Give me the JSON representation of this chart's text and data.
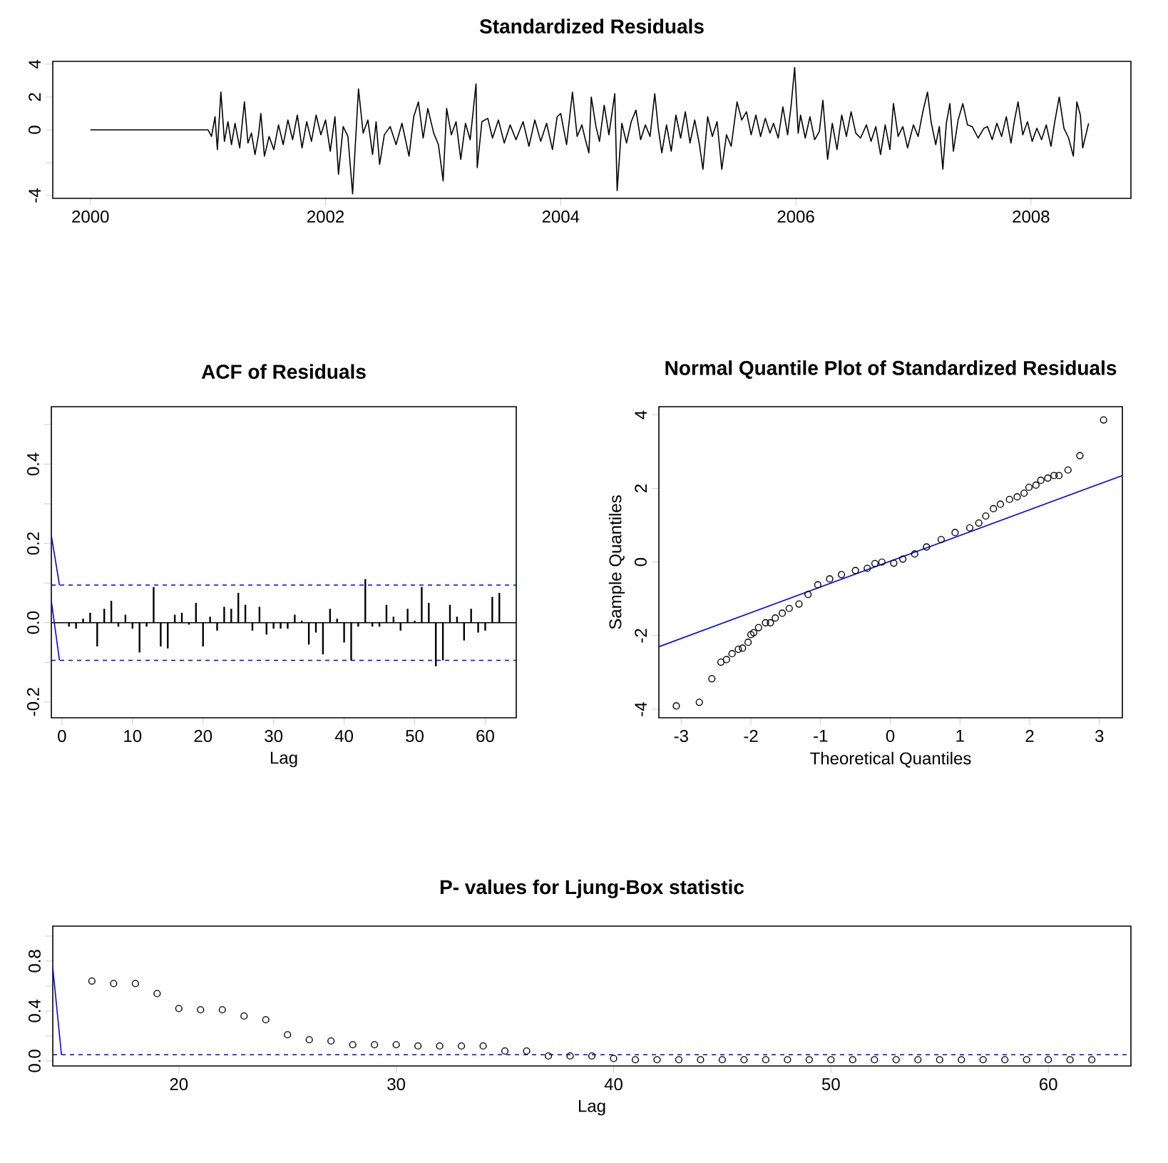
{
  "chart_data": [
    {
      "type": "line",
      "title": "Standardized Residuals",
      "color": "#000000",
      "x": [
        2000,
        2001,
        2001.03,
        2001.06,
        2001.08,
        2001.11,
        2001.14,
        2001.17,
        2001.2,
        2001.23,
        2001.27,
        2001.31,
        2001.34,
        2001.37,
        2001.4,
        2001.43,
        2001.45,
        2001.48,
        2001.52,
        2001.56,
        2001.6,
        2001.64,
        2001.68,
        2001.72,
        2001.76,
        2001.8,
        2001.84,
        2001.88,
        2001.92,
        2001.96,
        2002.0,
        2002.04,
        2002.08,
        2002.11,
        2002.15,
        2002.19,
        2002.23,
        2002.28,
        2002.32,
        2002.36,
        2002.4,
        2002.43,
        2002.46,
        2002.5,
        2002.55,
        2002.6,
        2002.65,
        2002.71,
        2002.75,
        2002.79,
        2002.83,
        2002.87,
        2002.92,
        2002.96,
        2003.0,
        2003.03,
        2003.07,
        2003.11,
        2003.15,
        2003.19,
        2003.23,
        2003.28,
        2003.29,
        2003.33,
        2003.38,
        2003.42,
        2003.47,
        2003.52,
        2003.57,
        2003.62,
        2003.68,
        2003.73,
        2003.78,
        2003.83,
        2003.88,
        2003.93,
        2003.97,
        2004.0,
        2004.05,
        2004.1,
        2004.14,
        2004.18,
        2004.21,
        2004.24,
        2004.26,
        2004.3,
        2004.33,
        2004.37,
        2004.41,
        2004.46,
        2004.48,
        2004.52,
        2004.56,
        2004.6,
        2004.64,
        2004.68,
        2004.72,
        2004.76,
        2004.8,
        2004.83,
        2004.86,
        2004.9,
        2004.94,
        2004.98,
        2005.02,
        2005.06,
        2005.1,
        2005.14,
        2005.18,
        2005.21,
        2005.25,
        2005.29,
        2005.33,
        2005.37,
        2005.41,
        2005.45,
        2005.5,
        2005.54,
        2005.58,
        2005.62,
        2005.66,
        2005.7,
        2005.74,
        2005.78,
        2005.81,
        2005.85,
        2005.89,
        2005.93,
        2005.96,
        2005.99,
        2006.02,
        2006.04,
        2006.08,
        2006.12,
        2006.16,
        2006.2,
        2006.23,
        2006.27,
        2006.31,
        2006.35,
        2006.39,
        2006.43,
        2006.47,
        2006.51,
        2006.55,
        2006.6,
        2006.64,
        2006.68,
        2006.72,
        2006.76,
        2006.8,
        2006.83,
        2006.87,
        2006.91,
        2006.95,
        2007.0,
        2007.04,
        2007.08,
        2007.12,
        2007.15,
        2007.19,
        2007.22,
        2007.25,
        2007.28,
        2007.31,
        2007.34,
        2007.38,
        2007.42,
        2007.46,
        2007.5,
        2007.55,
        2007.6,
        2007.63,
        2007.67,
        2007.71,
        2007.75,
        2007.79,
        2007.83,
        2007.86,
        2007.89,
        2007.93,
        2007.97,
        2008.01,
        2008.05,
        2008.09,
        2008.13,
        2008.17,
        2008.2,
        2008.24,
        2008.28,
        2008.32,
        2008.36,
        2008.39,
        2008.42,
        2008.44,
        2008.49
      ],
      "values": [
        0,
        0,
        -0.4,
        0.8,
        -1.2,
        2.3,
        -0.7,
        0.5,
        -0.9,
        0.4,
        -1.1,
        1.7,
        -0.8,
        -0.2,
        -1.5,
        -0.3,
        1.0,
        -1.6,
        -0.4,
        -1.2,
        0.3,
        -0.9,
        0.6,
        -0.6,
        0.9,
        -1.1,
        0.5,
        -0.7,
        0.9,
        -0.3,
        0.6,
        -1.3,
        0.8,
        -2.7,
        0.2,
        -0.4,
        -3.9,
        2.5,
        -0.2,
        0.6,
        -1.5,
        0.5,
        -2.1,
        -0.3,
        0.2,
        -0.9,
        0.4,
        -1.6,
        0.8,
        1.7,
        -0.5,
        1.3,
        -0.2,
        -0.9,
        -3.1,
        1.3,
        -0.3,
        0.5,
        -1.8,
        0.4,
        -0.6,
        2.8,
        -2.3,
        0.5,
        0.7,
        -0.5,
        0.6,
        -0.8,
        0.3,
        -0.6,
        0.5,
        -1.0,
        0.6,
        -0.7,
        0.4,
        -1.2,
        0.8,
        1.0,
        -0.9,
        2.3,
        -0.4,
        0.3,
        -0.6,
        -1.4,
        2.0,
        0.2,
        -0.7,
        1.5,
        -0.3,
        2.2,
        -3.7,
        0.4,
        -0.8,
        0.5,
        1.2,
        -0.6,
        0.3,
        -0.4,
        2.2,
        0.1,
        -1.4,
        0.3,
        -1.3,
        0.9,
        -0.5,
        1.1,
        -0.8,
        0.6,
        -0.9,
        -2.4,
        0.8,
        -0.4,
        0.5,
        -2.4,
        -0.3,
        -1.0,
        1.7,
        0.6,
        1.1,
        -0.3,
        0.9,
        -0.4,
        0.7,
        -0.2,
        0.4,
        -0.5,
        1.4,
        -0.3,
        1.5,
        3.8,
        -0.2,
        0.9,
        -0.5,
        0.8,
        -0.6,
        -0.1,
        1.8,
        -1.8,
        0.4,
        -1.2,
        0.9,
        -0.4,
        1.1,
        -0.2,
        -0.5,
        0.3,
        -0.7,
        0.2,
        -1.5,
        0.3,
        -1.2,
        1.6,
        -0.4,
        0.2,
        -1.1,
        0.3,
        -0.4,
        1.1,
        2.3,
        0.5,
        -0.9,
        0.2,
        -2.4,
        0.4,
        1.6,
        -1.3,
        0.6,
        1.6,
        0.3,
        0.2,
        -0.5,
        0.1,
        0.2,
        -0.6,
        0.4,
        -0.4,
        0.8,
        -0.8,
        0.6,
        1.7,
        -0.3,
        0.5,
        -0.7,
        0.1,
        -0.6,
        0.3,
        -1.0,
        0.4,
        2.0,
        0.1,
        -0.5,
        -1.6,
        1.7,
        0.9,
        -1.1,
        0.4
      ],
      "xlim": [
        1999.68,
        2008.85
      ],
      "ylim": [
        -4.17,
        4.17
      ],
      "xticks": [
        2000,
        2002,
        2004,
        2006,
        2008
      ],
      "yticks": [
        -4,
        {
          "value": -2,
          "label": null
        },
        0,
        2,
        4
      ]
    },
    {
      "type": "bar",
      "title": "ACF of Residuals",
      "xlabel": "Lag",
      "series": [
        {
          "type": "bar",
          "color": "#000000",
          "x": [
            1,
            2,
            3,
            4,
            5,
            6,
            7,
            8,
            9,
            10,
            11,
            12,
            13,
            14,
            15,
            16,
            17,
            18,
            19,
            20,
            21,
            22,
            23,
            24,
            25,
            26,
            27,
            28,
            29,
            30,
            31,
            32,
            33,
            34,
            35,
            36,
            37,
            38,
            39,
            40,
            41,
            42,
            43,
            44,
            45,
            46,
            47,
            48,
            49,
            50,
            51,
            52,
            53,
            54,
            55,
            56,
            57,
            58,
            59,
            60,
            61,
            62
          ],
          "values": [
            -0.01,
            -0.015,
            0.01,
            0.025,
            -0.06,
            0.035,
            0.055,
            -0.01,
            0.02,
            -0.015,
            -0.075,
            -0.01,
            0.09,
            -0.06,
            -0.065,
            0.02,
            0.025,
            -0.005,
            0.05,
            -0.06,
            0.015,
            -0.02,
            0.04,
            0.035,
            0.075,
            0.045,
            -0.02,
            0.04,
            -0.03,
            -0.015,
            -0.015,
            -0.015,
            0.02,
            0.005,
            -0.055,
            -0.025,
            -0.08,
            0.035,
            0.01,
            -0.05,
            -0.095,
            -0.01,
            0.11,
            -0.01,
            -0.01,
            0.045,
            0.015,
            -0.02,
            0.035,
            0.005,
            0.09,
            0.05,
            -0.11,
            -0.095,
            0.045,
            0.015,
            -0.045,
            0.035,
            -0.025,
            -0.02,
            0.065,
            0.075
          ]
        },
        {
          "type": "line",
          "color": "#0000ff",
          "x": [
            -1.5,
            -0.35
          ],
          "values": [
            0.22,
            0.095
          ]
        },
        {
          "type": "line",
          "color": "#0000ff",
          "x": [
            -1.5,
            -0.35
          ],
          "values": [
            0.055,
            -0.095
          ]
        }
      ],
      "ref_lines": [
        {
          "axis": "y",
          "value": 0,
          "color": "#000000",
          "line_style": "solid"
        },
        {
          "axis": "y",
          "value": 0.095,
          "color": "#0000ff",
          "line_style": "dashed"
        },
        {
          "axis": "y",
          "value": -0.095,
          "color": "#0000ff",
          "line_style": "dashed"
        }
      ],
      "xlim": [
        -1.5,
        64.4
      ],
      "ylim": [
        -0.24,
        0.545
      ],
      "xticks": [
        0,
        10,
        20,
        30,
        40,
        50,
        60
      ],
      "yticks": [
        -0.2,
        {
          "value": -0.1,
          "label": null
        },
        {
          "value": 0,
          "label": "0.0"
        },
        {
          "value": 0.1,
          "label": null
        },
        0.2,
        {
          "value": 0.3,
          "label": null
        },
        0.4,
        {
          "value": 0.5,
          "label": null
        }
      ]
    },
    {
      "type": "scatter",
      "title": "Normal Quantile Plot of Standardized Residuals",
      "xlabel": "Theoretical Quantiles",
      "ylabel": "Sample Quantiles",
      "series": [
        {
          "type": "scatter",
          "marker": "circle",
          "color": "#000000",
          "x": [
            -3.07,
            -2.74,
            -2.56,
            -2.43,
            -2.35,
            -2.27,
            -2.18,
            -2.12,
            -2.04,
            -2.0,
            -1.96,
            -1.89,
            -1.79,
            -1.72,
            -1.65,
            -1.55,
            -1.45,
            -1.31,
            -1.18,
            -1.04,
            -0.87,
            -0.7,
            -0.5,
            -0.33,
            -0.22,
            -0.12,
            0.05,
            0.18,
            0.35,
            0.52,
            0.73,
            0.93,
            1.14,
            1.27,
            1.37,
            1.48,
            1.58,
            1.71,
            1.82,
            1.92,
            1.99,
            2.09,
            2.16,
            2.26,
            2.35,
            2.42,
            2.55,
            2.72,
            3.06
          ],
          "values": [
            -3.91,
            -3.81,
            -3.17,
            -2.72,
            -2.65,
            -2.49,
            -2.37,
            -2.34,
            -2.18,
            -1.97,
            -1.92,
            -1.78,
            -1.65,
            -1.65,
            -1.52,
            -1.39,
            -1.26,
            -1.14,
            -0.88,
            -0.62,
            -0.46,
            -0.34,
            -0.23,
            -0.17,
            -0.04,
            0,
            -0.03,
            0.08,
            0.22,
            0.41,
            0.61,
            0.8,
            0.93,
            1.06,
            1.25,
            1.45,
            1.57,
            1.7,
            1.77,
            1.87,
            2.03,
            2.09,
            2.22,
            2.28,
            2.35,
            2.35,
            2.5,
            2.89,
            3.86
          ]
        },
        {
          "type": "line",
          "color": "#0000ff",
          "x": [
            -3.32,
            3.33
          ],
          "values": [
            -2.3,
            2.35
          ]
        }
      ],
      "xlim": [
        -3.32,
        3.33
      ],
      "ylim": [
        -4.23,
        4.22
      ],
      "xticks": [
        -3,
        -2,
        -1,
        0,
        1,
        2,
        3
      ],
      "yticks": [
        -4,
        -2,
        0,
        2,
        4
      ]
    },
    {
      "type": "scatter",
      "title": "P- values for Ljung-Box statistic",
      "xlabel": "Lag",
      "series": [
        {
          "type": "scatter",
          "marker": "circle",
          "color": "#000000",
          "x": [
            16,
            17,
            18,
            19,
            20,
            21,
            22,
            23,
            24,
            25,
            26,
            27,
            28,
            29,
            30,
            31,
            32,
            33,
            34,
            35,
            36,
            37,
            38,
            39,
            40,
            41,
            42,
            43,
            44,
            45,
            46,
            47,
            48,
            49,
            50,
            51,
            52,
            53,
            54,
            55,
            56,
            57,
            58,
            59,
            60,
            61,
            62
          ],
          "values": [
            0.64,
            0.62,
            0.62,
            0.54,
            0.42,
            0.41,
            0.41,
            0.36,
            0.33,
            0.21,
            0.17,
            0.16,
            0.13,
            0.13,
            0.13,
            0.12,
            0.12,
            0.12,
            0.12,
            0.08,
            0.08,
            0.04,
            0.04,
            0.04,
            0.02,
            0.01,
            0.01,
            0.01,
            0.01,
            0.01,
            0.01,
            0.01,
            0.01,
            0.01,
            0.01,
            0.01,
            0.01,
            0.01,
            0.01,
            0.01,
            0.01,
            0.01,
            0.01,
            0.01,
            0.01,
            0.01,
            0.01
          ]
        },
        {
          "type": "line",
          "color": "#0000ff",
          "x": [
            14.2,
            14.6
          ],
          "values": [
            0.75,
            0.05
          ]
        }
      ],
      "ref_lines": [
        {
          "axis": "y",
          "value": 0.05,
          "color": "#0000ff",
          "line_style": "dashed"
        }
      ],
      "xlim": [
        14.2,
        63.8
      ],
      "ylim": [
        -0.04,
        1.08
      ],
      "xticks": [
        20,
        30,
        40,
        50,
        60
      ],
      "yticks": [
        {
          "value": 0,
          "label": "0.0"
        },
        {
          "value": 0.2,
          "label": null
        },
        0.4,
        {
          "value": 0.6,
          "label": null
        },
        0.8,
        {
          "value": 1.0,
          "label": null
        }
      ]
    }
  ]
}
